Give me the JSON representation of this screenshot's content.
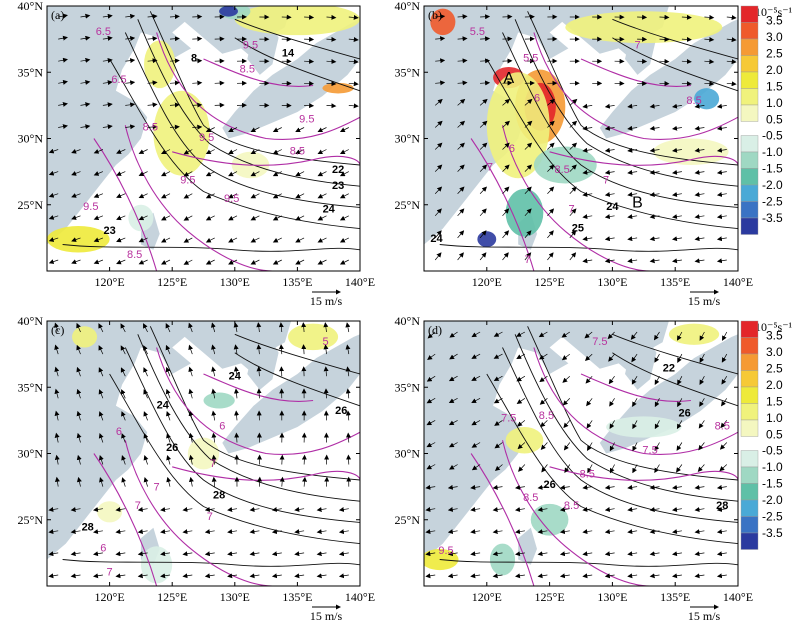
{
  "figure": {
    "units_text": "10⁻⁵s⁻¹",
    "colors": {
      "sea": "#ffffff",
      "land": "#c6d3dc",
      "black_contour": "#111111",
      "magenta_contour": "#b02ea6"
    },
    "panels": [
      {
        "label": "(a)",
        "lon_range": [
          115,
          140
        ],
        "lat_range": [
          20,
          40
        ],
        "x_ticks": [
          "120°E",
          "125°E",
          "130°E",
          "135°E",
          "140°E"
        ],
        "y_ticks": [
          "25°N",
          "30°N",
          "35°N",
          "40°N"
        ],
        "wind_scale_label": "15 m/s",
        "black_contour_labels": [
          "8",
          "14",
          "22",
          "23",
          "24",
          "23"
        ],
        "magenta_contour_labels": [
          "6.5",
          "9.5",
          "8.5",
          "6.5",
          "8.5",
          "9.5",
          "9.5",
          "9.5",
          "8.5",
          "9.5",
          "8.5",
          "9.5"
        ],
        "points": []
      },
      {
        "label": "(b)",
        "lon_range": [
          115,
          140
        ],
        "lat_range": [
          20,
          40
        ],
        "x_ticks": [
          "120°E",
          "125°E",
          "130°E",
          "135°E",
          "140°E"
        ],
        "y_ticks": [
          "25°N",
          "30°N",
          "35°N",
          "40°N"
        ],
        "wind_scale_label": "15 m/s",
        "black_contour_labels": [
          "24",
          "25",
          "24"
        ],
        "magenta_contour_labels": [
          "5.5",
          "5.5",
          "6",
          "6",
          "7",
          "7",
          "8.5",
          "8.5",
          "7",
          "7",
          "7"
        ],
        "points": [
          "A",
          "B"
        ]
      },
      {
        "label": "(c)",
        "lon_range": [
          115,
          140
        ],
        "lat_range": [
          20,
          40
        ],
        "x_ticks": [
          "120°E",
          "125°E",
          "130°E",
          "135°E",
          "140°E"
        ],
        "y_ticks": [
          "25°N",
          "30°N",
          "35°N",
          "40°N"
        ],
        "wind_scale_label": "15 m/s",
        "black_contour_labels": [
          "24",
          "24",
          "26",
          "26",
          "28",
          "28"
        ],
        "magenta_contour_labels": [
          "5",
          "6",
          "6",
          "7",
          "7",
          "7",
          "7",
          "6",
          "7"
        ],
        "points": []
      },
      {
        "label": "(d)",
        "lon_range": [
          115,
          140
        ],
        "lat_range": [
          20,
          40
        ],
        "x_ticks": [
          "120°E",
          "125°E",
          "130°E",
          "135°E",
          "140°E"
        ],
        "y_ticks": [
          "25°N",
          "30°N",
          "35°N",
          "40°N"
        ],
        "wind_scale_label": "15 m/s",
        "black_contour_labels": [
          "22",
          "26",
          "26",
          "28"
        ],
        "magenta_contour_labels": [
          "7.5",
          "7.5",
          "8.5",
          "8.5",
          "8.5",
          "7.5",
          "8.5",
          "8.5",
          "9.5"
        ],
        "points": []
      }
    ],
    "colorbars": [
      {
        "name": "top",
        "positive": [
          {
            "label": "3.5",
            "color": "#e3262a"
          },
          {
            "label": "3.0",
            "color": "#ef5a2b"
          },
          {
            "label": "2.5",
            "color": "#f59a34"
          },
          {
            "label": "2.0",
            "color": "#f6c936"
          },
          {
            "label": "1.5",
            "color": "#eeea3a"
          },
          {
            "label": "1.0",
            "color": "#f0f27c"
          },
          {
            "label": "0.5",
            "color": "#f4f7c0"
          }
        ],
        "negative": [
          {
            "label": "-0.5",
            "color": "#d9efe6"
          },
          {
            "label": "-1.0",
            "color": "#9fd8c3"
          },
          {
            "label": "-1.5",
            "color": "#5fc0a7"
          },
          {
            "label": "-2.0",
            "color": "#4aa9d6"
          },
          {
            "label": "-2.5",
            "color": "#3a73c4"
          },
          {
            "label": "-3.5",
            "color": "#2b3a9f"
          }
        ]
      },
      {
        "name": "bottom",
        "positive": [
          {
            "label": "3.5",
            "color": "#e3262a"
          },
          {
            "label": "3.0",
            "color": "#ef5a2b"
          },
          {
            "label": "2.5",
            "color": "#f59a34"
          },
          {
            "label": "2.0",
            "color": "#f6c936"
          },
          {
            "label": "1.5",
            "color": "#eeea3a"
          },
          {
            "label": "1.0",
            "color": "#f0f27c"
          },
          {
            "label": "0.5",
            "color": "#f4f7c0"
          }
        ],
        "negative": [
          {
            "label": "-0.5",
            "color": "#d9efe6"
          },
          {
            "label": "-1.0",
            "color": "#9fd8c3"
          },
          {
            "label": "-1.5",
            "color": "#5fc0a7"
          },
          {
            "label": "-2.0",
            "color": "#4aa9d6"
          },
          {
            "label": "-2.5",
            "color": "#3a73c4"
          },
          {
            "label": "-3.5",
            "color": "#2b3a9f"
          }
        ]
      }
    ]
  }
}
